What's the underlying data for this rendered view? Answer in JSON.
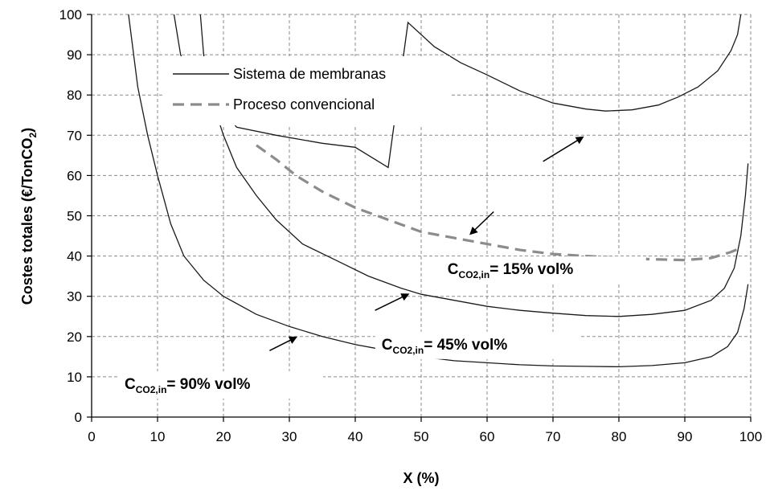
{
  "chart_data": {
    "type": "line",
    "xlabel": "X (%)",
    "ylabel_parts": {
      "main": "Costes totales (€/TonCO",
      "sub": "2",
      "end": ")"
    },
    "xlim": [
      0,
      100
    ],
    "ylim": [
      0,
      100
    ],
    "x_ticks": [
      0,
      10,
      20,
      30,
      40,
      50,
      60,
      70,
      80,
      90,
      100
    ],
    "y_ticks": [
      0,
      10,
      20,
      30,
      40,
      50,
      60,
      70,
      80,
      90,
      100
    ],
    "grid": true,
    "legend": {
      "position": "top-left",
      "entries": [
        {
          "label": "Sistema de membranas",
          "style": "solid",
          "color": "#1a1a1a"
        },
        {
          "label": "Proceso convencional",
          "style": "dashed",
          "color": "#8c8c8c"
        }
      ]
    },
    "series": [
      {
        "group": "membranas",
        "style": "solid",
        "color": "#1a1a1a",
        "points": [
          [
            12.5,
            100
          ],
          [
            13.5,
            90
          ],
          [
            15,
            85
          ],
          [
            18,
            80
          ],
          [
            22,
            72
          ],
          [
            28,
            70
          ],
          [
            35,
            68
          ],
          [
            40,
            67
          ],
          [
            45,
            62
          ],
          [
            48,
            98
          ],
          [
            52,
            92
          ],
          [
            56,
            88
          ],
          [
            60,
            85
          ],
          [
            65,
            81
          ],
          [
            70,
            78
          ],
          [
            75,
            76.5
          ],
          [
            78,
            76
          ],
          [
            82,
            76.3
          ],
          [
            86,
            77.5
          ],
          [
            89,
            79.5
          ],
          [
            92,
            82
          ],
          [
            95,
            86
          ],
          [
            97,
            91
          ],
          [
            98,
            95
          ],
          [
            98.5,
            100
          ]
        ]
      },
      {
        "group": "membranas",
        "style": "solid",
        "color": "#1a1a1a",
        "points": [
          [
            16.5,
            100
          ],
          [
            17,
            90
          ],
          [
            18,
            80
          ],
          [
            20,
            70
          ],
          [
            22,
            62
          ],
          [
            25,
            55
          ],
          [
            28,
            49
          ],
          [
            32,
            43
          ],
          [
            37,
            39
          ],
          [
            42,
            35
          ],
          [
            47,
            32
          ],
          [
            50,
            30.5
          ],
          [
            55,
            29
          ],
          [
            60,
            27.5
          ],
          [
            65,
            26.5
          ],
          [
            70,
            25.8
          ],
          [
            75,
            25.2
          ],
          [
            80,
            25
          ],
          [
            85,
            25.5
          ],
          [
            90,
            26.5
          ],
          [
            94,
            29
          ],
          [
            96,
            32
          ],
          [
            97.5,
            37
          ],
          [
            98.5,
            45
          ],
          [
            99.2,
            55
          ],
          [
            99.6,
            63
          ]
        ]
      },
      {
        "group": "membranas",
        "style": "solid",
        "color": "#1a1a1a",
        "points": [
          [
            5.6,
            100
          ],
          [
            7,
            82
          ],
          [
            8.5,
            70
          ],
          [
            10,
            60
          ],
          [
            12,
            48
          ],
          [
            14,
            40
          ],
          [
            17,
            34
          ],
          [
            20,
            30
          ],
          [
            25,
            25.5
          ],
          [
            30,
            22.5
          ],
          [
            35,
            20
          ],
          [
            40,
            18
          ],
          [
            45,
            16.5
          ],
          [
            50,
            15
          ],
          [
            55,
            14
          ],
          [
            60,
            13.5
          ],
          [
            65,
            13
          ],
          [
            70,
            12.7
          ],
          [
            75,
            12.6
          ],
          [
            80,
            12.5
          ],
          [
            85,
            12.8
          ],
          [
            90,
            13.5
          ],
          [
            94,
            15
          ],
          [
            96.5,
            17.5
          ],
          [
            98,
            21
          ],
          [
            99,
            27
          ],
          [
            99.6,
            33
          ]
        ]
      },
      {
        "group": "convencional",
        "style": "dashed",
        "color": "#8c8c8c",
        "points": [
          [
            25,
            67.5
          ],
          [
            28,
            64
          ],
          [
            31,
            60
          ],
          [
            35,
            56
          ],
          [
            40,
            52
          ],
          [
            45,
            49
          ],
          [
            50,
            46
          ],
          [
            55,
            44.5
          ],
          [
            60,
            43
          ],
          [
            65,
            41.5
          ],
          [
            70,
            40.5
          ],
          [
            75,
            40
          ],
          [
            80,
            39.5
          ],
          [
            85,
            39.2
          ],
          [
            90,
            39
          ],
          [
            94,
            39.5
          ],
          [
            97,
            41
          ],
          [
            98.5,
            42
          ]
        ]
      }
    ],
    "annotations": [
      {
        "prefix": "C",
        "sub": "CO2,in",
        "text": "= 15% vol%",
        "anchor_data": [
          54,
          35.5
        ],
        "arrow_from": [
          68.5,
          63.5
        ],
        "arrow_to": [
          74.5,
          69.5
        ]
      },
      {
        "prefix": "C",
        "sub": "CO2,in",
        "text": "= 45% vol%",
        "anchor_data": [
          44,
          16.8
        ],
        "arrow_from": [
          43,
          26.5
        ],
        "arrow_to": [
          48,
          30.5
        ]
      },
      {
        "prefix": "C",
        "sub": "CO2,in",
        "text": "= 90% vol%",
        "anchor_data": [
          5,
          7
        ],
        "arrow_from": [
          27,
          16.5
        ],
        "arrow_to": [
          31,
          19.8
        ]
      },
      {
        "prefix": "",
        "sub": "",
        "text": "",
        "anchor_data": null,
        "arrow_from": [
          61,
          51
        ],
        "arrow_to": [
          57.5,
          45.5
        ]
      }
    ]
  }
}
